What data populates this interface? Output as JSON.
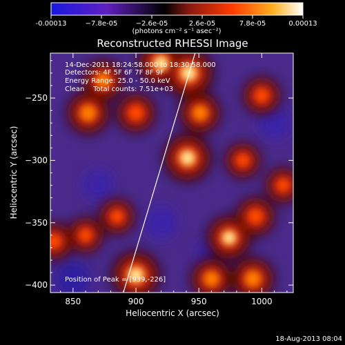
{
  "chart_data": {
    "type": "heatmap",
    "title": "Reconstructed RHESSI Image",
    "xlabel": "Heliocentric X (arcsec)",
    "ylabel": "Heliocentric Y (arcsec)",
    "xlim": [
      832,
      1025
    ],
    "ylim": [
      -406,
      -214
    ],
    "x_ticks": [
      850,
      900,
      950,
      1000
    ],
    "y_ticks": [
      -250,
      -300,
      -350,
      -400
    ],
    "colorbar": {
      "ticks": [
        "-0.00013",
        "−7.8e-05",
        "−2.6e-05",
        "2.6e-05",
        "7.8e-05",
        "0.00013"
      ],
      "unit_label": "(photons cm⁻² s⁻¹ asec⁻²)",
      "range": [
        -0.00013,
        0.00013
      ],
      "colors": [
        "#1818e0",
        "#6020c0",
        "#000000",
        "#8a1a10",
        "#ff3a00",
        "#ffb020",
        "#ffffff"
      ]
    },
    "info_lines": [
      "14-Dec-2011 18:24:58.000 to 18:30:58.000",
      "Detectors: 4F 5F 6F 7F 8F 9F",
      "Energy Range: 25.0 - 50.0 keV",
      "Clean    Total counts: 7.51e+03"
    ],
    "position_of_peak": "Position of Peak = [939,-226]",
    "limb_line": [
      [
        890,
        -406
      ],
      [
        947,
        -214
      ]
    ],
    "bright_sources": [
      {
        "x": 900,
        "y": -392,
        "value": 0.000125
      },
      {
        "x": 920,
        "y": -222,
        "value": 0.00011
      },
      {
        "x": 941,
        "y": -298,
        "value": 0.00012
      },
      {
        "x": 942,
        "y": -230,
        "value": 0.00013
      },
      {
        "x": 862,
        "y": -262,
        "value": 9e-05
      },
      {
        "x": 874,
        "y": -236,
        "value": 8e-05
      },
      {
        "x": 900,
        "y": -262,
        "value": 7e-05
      },
      {
        "x": 951,
        "y": -262,
        "value": 8e-05
      },
      {
        "x": 974,
        "y": -362,
        "value": 0.0001
      },
      {
        "x": 993,
        "y": -395,
        "value": 9e-05
      },
      {
        "x": 960,
        "y": -395,
        "value": 8e-05
      },
      {
        "x": 1000,
        "y": -248,
        "value": 6e-05
      },
      {
        "x": 995,
        "y": -345,
        "value": 7e-05
      },
      {
        "x": 835,
        "y": -365,
        "value": 6e-05
      },
      {
        "x": 860,
        "y": -360,
        "value": 5e-05
      },
      {
        "x": 885,
        "y": -345,
        "value": 5e-05
      },
      {
        "x": 985,
        "y": -300,
        "value": 5e-05
      },
      {
        "x": 1017,
        "y": -320,
        "value": 5e-05
      }
    ],
    "dim_regions": [
      {
        "x": 870,
        "y": -320,
        "value": -8e-05
      },
      {
        "x": 850,
        "y": -395,
        "value": -0.0001
      },
      {
        "x": 920,
        "y": -350,
        "value": -9e-05
      },
      {
        "x": 1010,
        "y": -270,
        "value": -9e-05
      },
      {
        "x": 960,
        "y": -375,
        "value": -8e-05
      }
    ]
  },
  "footer": {
    "date": "18-Aug-2013 08:04"
  }
}
